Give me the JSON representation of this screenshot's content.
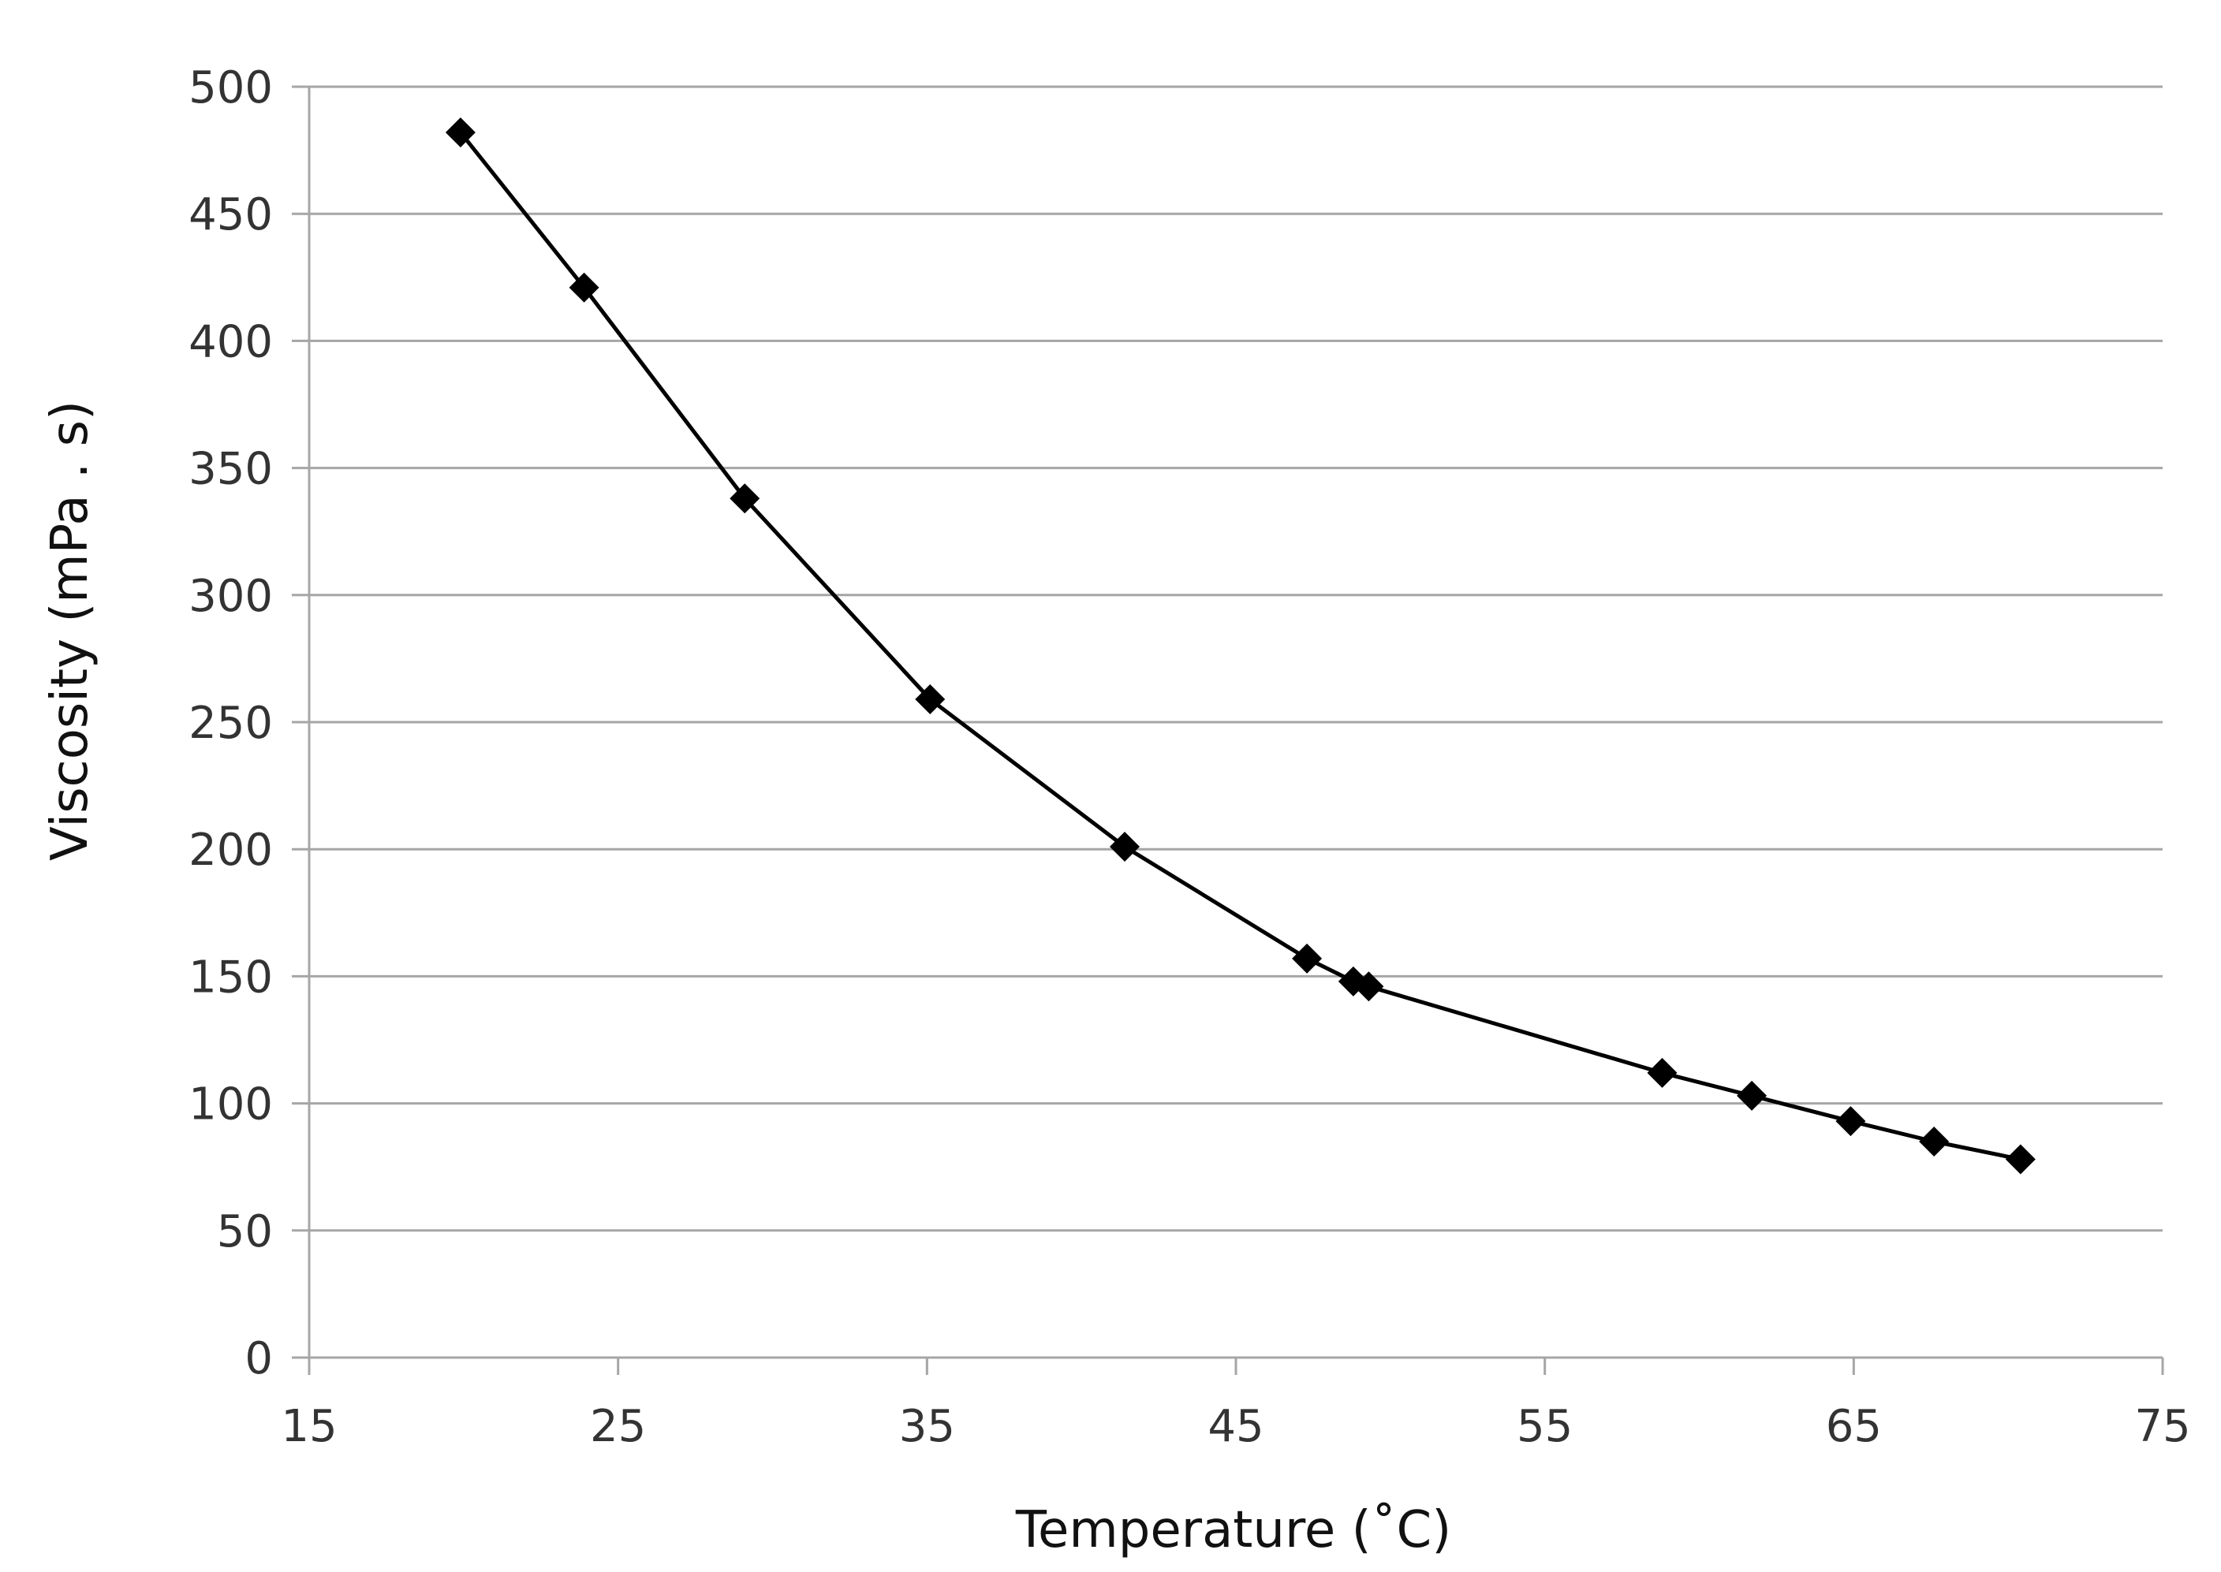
{
  "chart_data": {
    "type": "line",
    "title": "",
    "xlabel": "Temperature (˚C)",
    "ylabel": "Viscosity (mPa . s)",
    "xlim": [
      15,
      75
    ],
    "ylim": [
      0,
      500
    ],
    "x_ticks": [
      15,
      25,
      35,
      45,
      55,
      65,
      75
    ],
    "y_ticks": [
      0,
      50,
      100,
      150,
      200,
      250,
      300,
      350,
      400,
      450,
      500
    ],
    "grid": "horizontal",
    "legend": "none",
    "marker": "diamond",
    "colors": {
      "series": "#000000",
      "grid": "#a6a6a6",
      "axis": "#a6a6a6"
    },
    "series": [
      {
        "name": "Viscosity",
        "x": [
          19.9,
          23.9,
          29.1,
          35.1,
          41.4,
          47.3,
          48.8,
          49.3,
          58.8,
          61.7,
          64.9,
          67.6,
          70.4
        ],
        "y": [
          482,
          421,
          338,
          259,
          201,
          157,
          148,
          146,
          112,
          103,
          93,
          85,
          78
        ]
      }
    ]
  }
}
